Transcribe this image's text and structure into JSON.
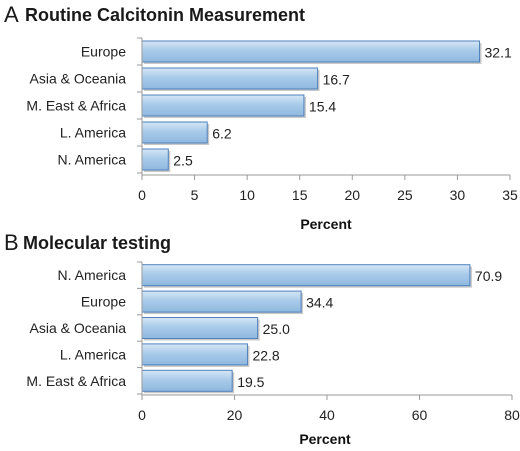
{
  "colors": {
    "bar_fill": "#9dc3e6",
    "bar_edge": "#4f81bd",
    "axis": "#9a9a9a"
  },
  "chart_data": [
    {
      "type": "bar",
      "orientation": "horizontal",
      "panel_letter": "A",
      "title": "Routine Calcitonin Measurement",
      "categories": [
        "Europe",
        "Asia & Oceania",
        "M. East & Africa",
        "L. America",
        "N. America"
      ],
      "values": [
        32.1,
        16.7,
        15.4,
        6.2,
        2.5
      ],
      "value_labels": [
        "32.1",
        "16.7",
        "15.4",
        "6.2",
        "2.5"
      ],
      "xlabel": "Percent",
      "xlim": [
        0,
        35
      ],
      "xticks": [
        0,
        5,
        10,
        15,
        20,
        25,
        30,
        35
      ],
      "grid": false
    },
    {
      "type": "bar",
      "orientation": "horizontal",
      "panel_letter": "B",
      "title": "Molecular testing",
      "categories": [
        "N. America",
        "Europe",
        "Asia & Oceania",
        "L. America",
        "M. East & Africa"
      ],
      "values": [
        70.9,
        34.4,
        25.0,
        22.8,
        19.5
      ],
      "value_labels": [
        "70.9",
        "34.4",
        "25.0",
        "22.8",
        "19.5"
      ],
      "xlabel": "Percent",
      "xlim": [
        0,
        80
      ],
      "xticks": [
        0,
        20,
        40,
        60,
        80
      ],
      "grid": false
    }
  ]
}
